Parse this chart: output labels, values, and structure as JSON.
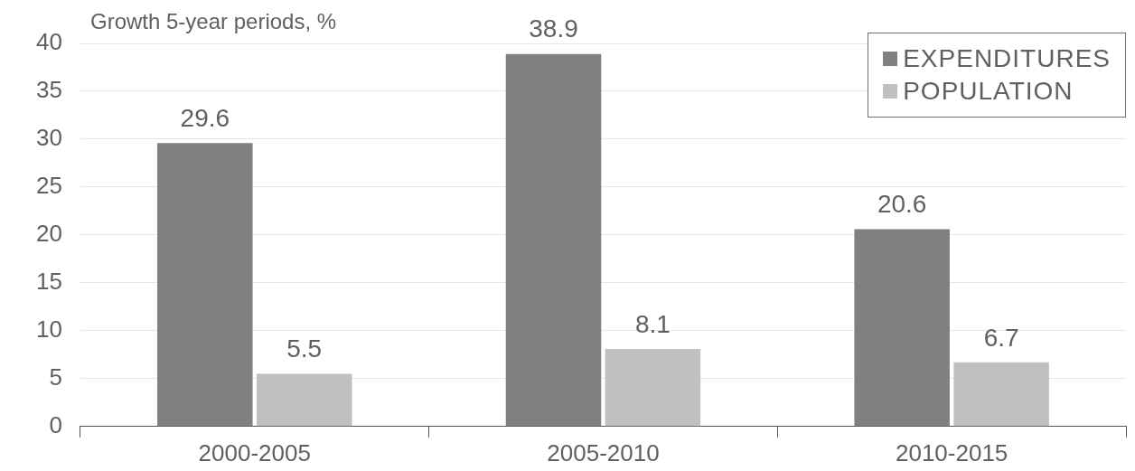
{
  "chart_data": {
    "type": "bar",
    "title": "Growth 5-year periods, %",
    "categories": [
      "2000-2005",
      "2005-2010",
      "2010-2015"
    ],
    "series": [
      {
        "name": "EXPENDITURES",
        "color": "#808080",
        "values": [
          29.6,
          38.9,
          20.6
        ]
      },
      {
        "name": "POPULATION",
        "color": "#c0c0c0",
        "values": [
          5.5,
          8.1,
          6.7
        ]
      }
    ],
    "ylim": [
      0,
      40
    ],
    "yticks": [
      0,
      5,
      10,
      15,
      20,
      25,
      30,
      35,
      40
    ],
    "grid": "y",
    "legend": "top right",
    "data_labels": true
  }
}
